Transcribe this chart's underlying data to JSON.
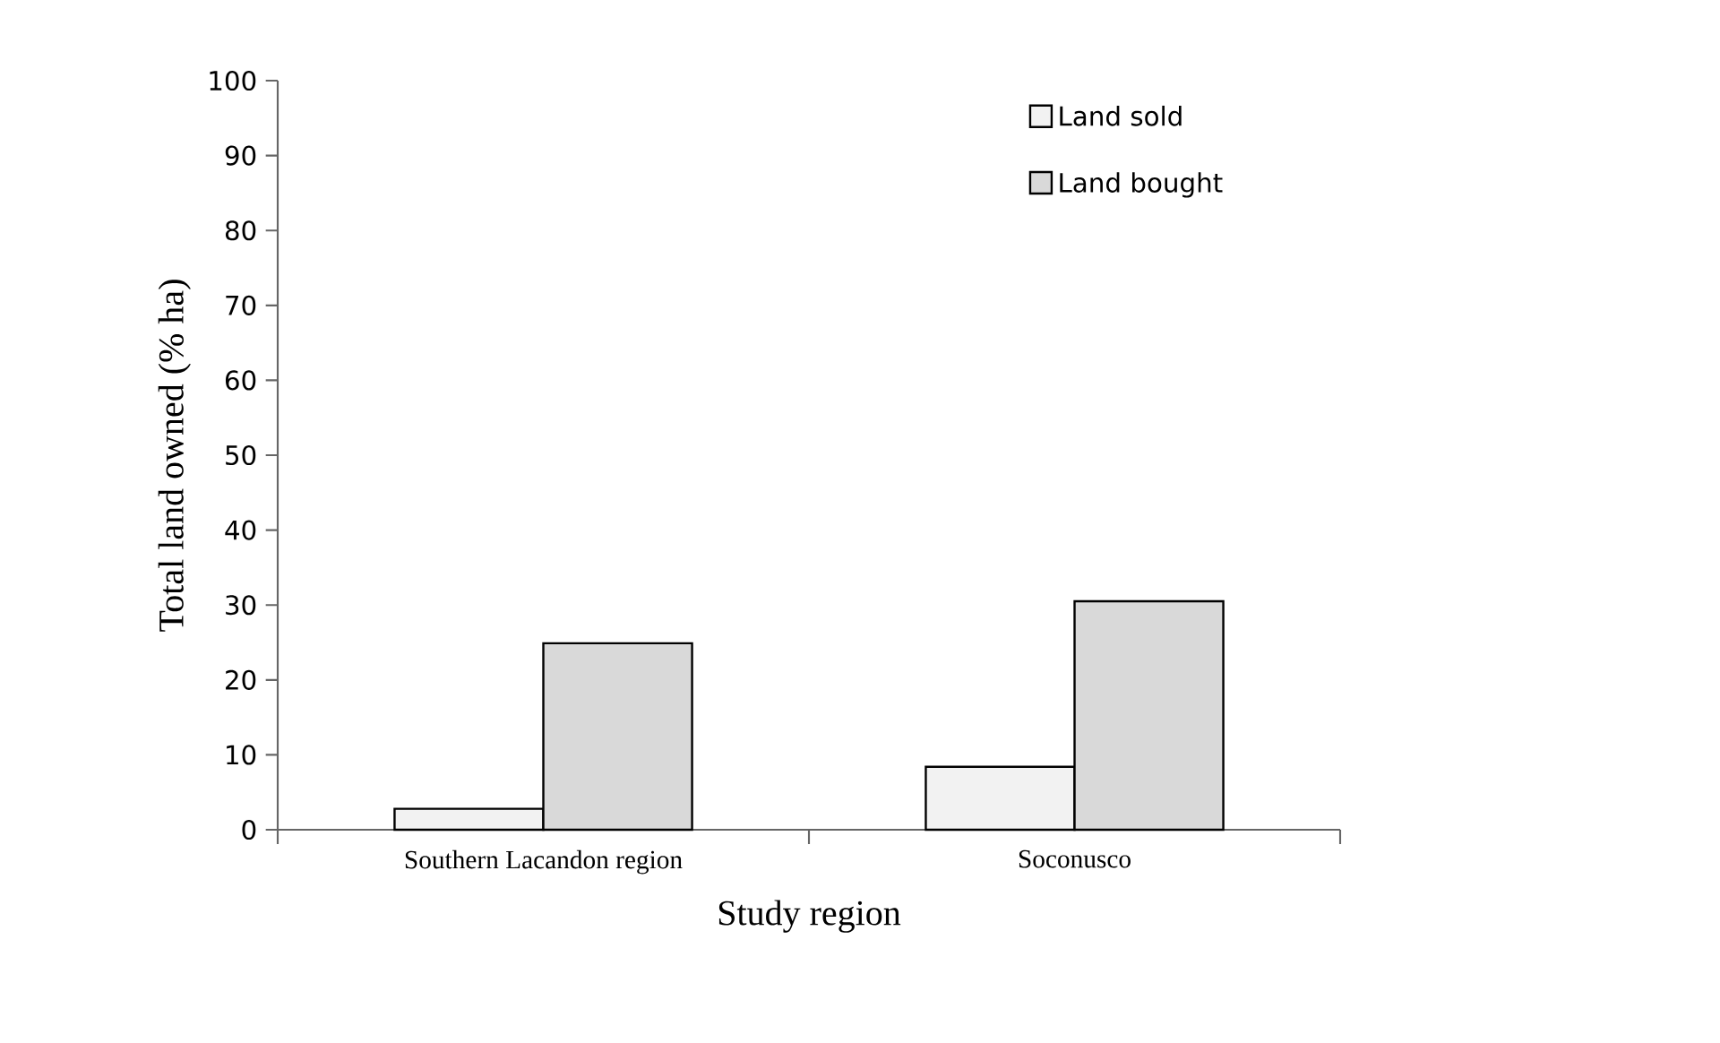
{
  "chart_data": {
    "type": "bar",
    "xlabel": "Study region",
    "ylabel": "Total land owned (% ha)",
    "categories": [
      "Southern Lacandon region",
      "Soconusco"
    ],
    "series": [
      {
        "name": "Land sold",
        "color": "#f2f2f2",
        "values": [
          2.8,
          8.4
        ]
      },
      {
        "name": "Land bought",
        "color": "#d9d9d9",
        "values": [
          24.9,
          30.5
        ]
      }
    ],
    "ylim": [
      0,
      100
    ],
    "yticks": [
      0,
      10,
      20,
      30,
      40,
      50,
      60,
      70,
      80,
      90,
      100
    ],
    "grid": false,
    "legend": "top right"
  }
}
